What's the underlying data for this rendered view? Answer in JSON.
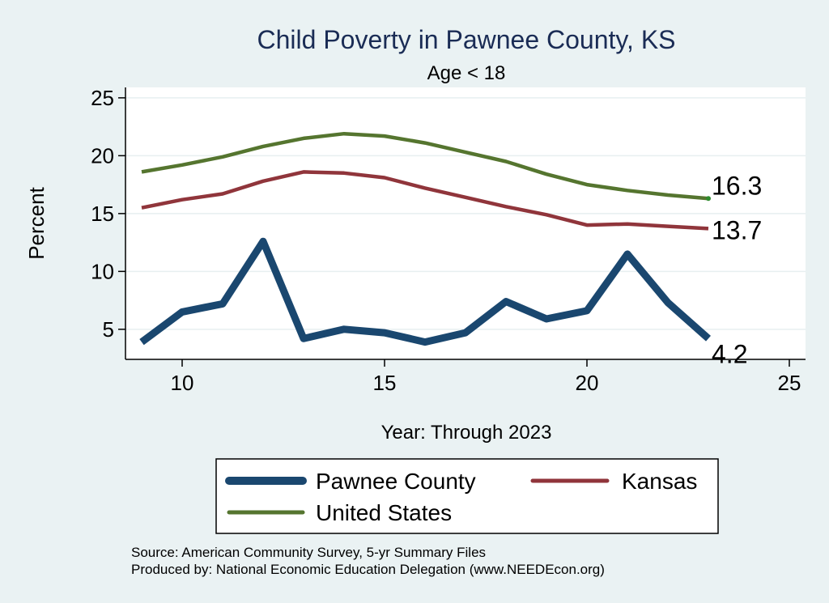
{
  "chart_data": {
    "type": "line",
    "title": "Child Poverty in Pawnee County, KS",
    "subtitle": "Age < 18",
    "xlabel": "Year: Through 2023",
    "ylabel": "Percent",
    "xlim": [
      8.6,
      25.4
    ],
    "ylim": [
      2.4,
      25.9
    ],
    "xticks": [
      10,
      15,
      20,
      25
    ],
    "yticks": [
      5,
      10,
      15,
      20,
      25
    ],
    "grid": true,
    "legend_position": "bottom",
    "colors": {
      "background": "#eaf2f3",
      "plot_background": "#ffffff",
      "gridline": "#e7eff0",
      "axis": "#000000",
      "title": "#1a2c55"
    },
    "series": [
      {
        "name": "Pawnee County",
        "color": "#1a476f",
        "weight": "thick",
        "x": [
          9,
          10,
          11,
          12,
          13,
          14,
          15,
          16,
          17,
          18,
          19,
          20,
          21,
          22,
          23
        ],
        "y": [
          3.9,
          6.5,
          7.2,
          12.6,
          4.2,
          5.0,
          4.7,
          3.9,
          4.7,
          7.4,
          5.9,
          6.6,
          11.5,
          7.3,
          4.2
        ],
        "end_label": "4.2"
      },
      {
        "name": "Kansas",
        "color": "#90353b",
        "weight": "medium",
        "x": [
          9,
          10,
          11,
          12,
          13,
          14,
          15,
          16,
          17,
          18,
          19,
          20,
          21,
          22,
          23
        ],
        "y": [
          15.5,
          16.2,
          16.7,
          17.8,
          18.6,
          18.5,
          18.1,
          17.2,
          16.4,
          15.6,
          14.9,
          14.0,
          14.1,
          13.9,
          13.7
        ],
        "end_label": "13.7"
      },
      {
        "name": "United States",
        "color": "#55752f",
        "weight": "medium",
        "x": [
          9,
          10,
          11,
          12,
          13,
          14,
          15,
          16,
          17,
          18,
          19,
          20,
          21,
          22,
          23
        ],
        "y": [
          18.6,
          19.2,
          19.9,
          20.8,
          21.5,
          21.9,
          21.7,
          21.1,
          20.3,
          19.5,
          18.4,
          17.5,
          17.0,
          16.6,
          16.3
        ],
        "end_label": "16.3"
      }
    ],
    "source_lines": [
      "Source: American Community Survey, 5-yr Summary Files",
      "Produced by: National Economic Education Delegation (www.NEEDEcon.org)"
    ]
  }
}
